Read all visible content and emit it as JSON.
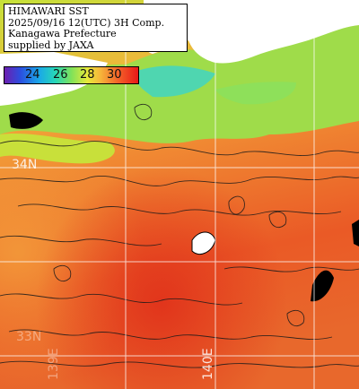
{
  "title": {
    "line1": "HIMAWARI SST",
    "line2": "2025/09/16 12(UTC) 3H Comp.",
    "line3": "Kanagawa Prefecture",
    "line4": "supplied by JAXA"
  },
  "legend": {
    "labels": [
      "24",
      "26",
      "28",
      "30"
    ],
    "colors": {
      "24": "#2b4fe0",
      "26": "#27d6b8",
      "28": "#e8e83a",
      "30": "#e81818"
    }
  },
  "grid_labels": {
    "lat": "34N",
    "lon": "140E",
    "lat_faint": "33N",
    "lon_faint": "139E"
  },
  "colors": {
    "land": "#ffffff",
    "cloud_mask": "#000000",
    "sea_cool": "#7fe25a",
    "sea_warm": "#f07c33",
    "sea_hot": "#e84a22",
    "grid": "#ffffff"
  }
}
